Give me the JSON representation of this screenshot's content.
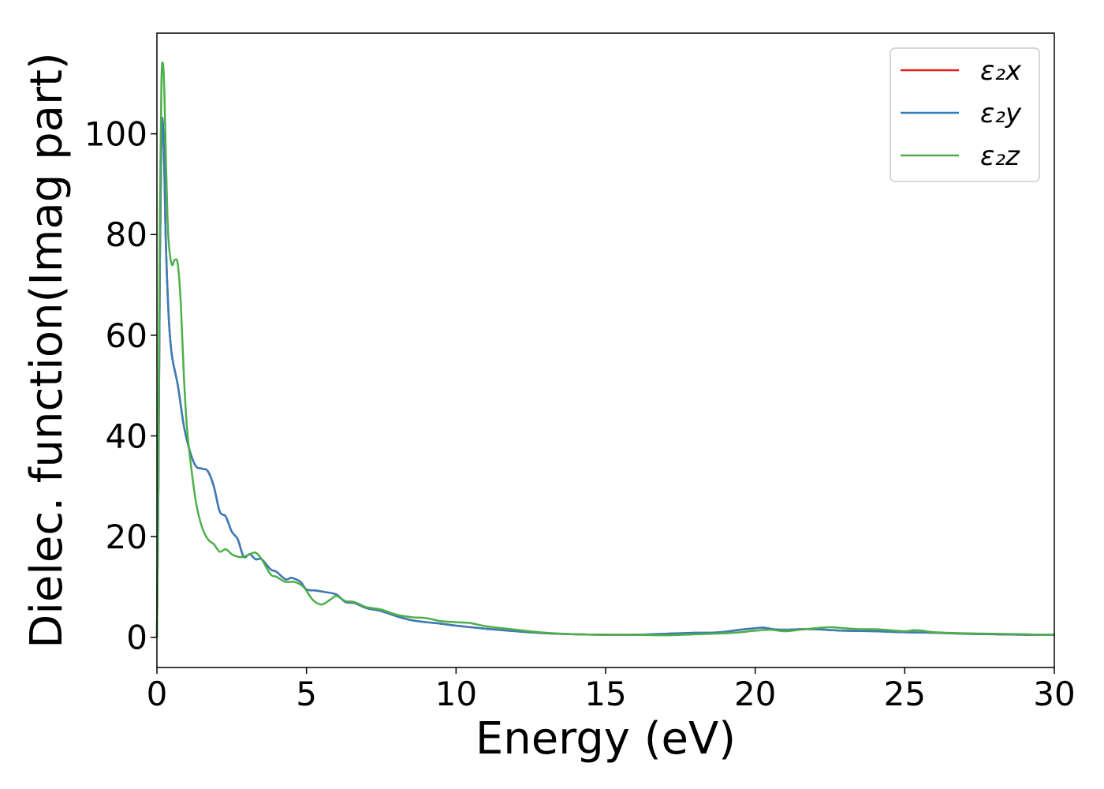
{
  "chart_data": {
    "type": "line",
    "title": "",
    "xlabel": "Energy (eV)",
    "ylabel": "Dielec. function(Imag part)",
    "xlim": [
      0,
      30
    ],
    "ylim": [
      -6,
      120
    ],
    "xticks": [
      0,
      5,
      10,
      15,
      20,
      25,
      30
    ],
    "yticks": [
      0,
      20,
      40,
      60,
      80,
      100
    ],
    "grid": false,
    "legend_position": "top-right",
    "series": [
      {
        "name": "ε₂x",
        "color": "#e41a1c",
        "x": [
          0,
          0.05,
          0.1,
          0.15,
          0.2,
          0.25,
          0.3,
          0.4,
          0.5,
          0.7,
          0.9,
          1.1,
          1.3,
          1.5,
          1.7,
          1.9,
          2.1,
          2.3,
          2.5,
          2.7,
          2.9,
          3.1,
          3.3,
          3.5,
          3.8,
          4.0,
          4.3,
          4.5,
          4.8,
          5.0,
          5.3,
          5.6,
          6.0,
          6.3,
          6.6,
          7.0,
          7.5,
          8.0,
          8.5,
          9.0,
          9.5,
          10.0,
          10.5,
          11.0,
          12.0,
          13.0,
          14.0,
          15.0,
          16.0,
          17.0,
          17.5,
          18.0,
          18.5,
          19.0,
          19.5,
          20.0,
          20.3,
          20.6,
          21.0,
          21.5,
          22.0,
          23.0,
          24.0,
          25.0,
          26.0,
          27.0,
          28.0,
          29.0,
          30.0
        ],
        "values": [
          0,
          30,
          75,
          100,
          102,
          92,
          78,
          63,
          56,
          50,
          42,
          37,
          34,
          33.5,
          33,
          30,
          25,
          24,
          21,
          19.5,
          16,
          16.5,
          15.5,
          15.5,
          13.5,
          13,
          11.5,
          11.8,
          11,
          9.5,
          9.3,
          9,
          8.5,
          7,
          6.8,
          5.8,
          5.2,
          4.2,
          3.4,
          3,
          2.7,
          2.3,
          2,
          1.7,
          1.2,
          0.8,
          0.6,
          0.5,
          0.5,
          0.7,
          0.8,
          0.9,
          0.9,
          1.1,
          1.5,
          1.8,
          1.9,
          1.6,
          1.5,
          1.6,
          1.6,
          1.3,
          1.2,
          1.0,
          0.9,
          0.7,
          0.6,
          0.5,
          0.5
        ]
      },
      {
        "name": "ε₂y",
        "color": "#377eb8",
        "x": [
          0,
          0.05,
          0.1,
          0.15,
          0.2,
          0.25,
          0.3,
          0.4,
          0.5,
          0.7,
          0.9,
          1.1,
          1.3,
          1.5,
          1.7,
          1.9,
          2.1,
          2.3,
          2.5,
          2.7,
          2.9,
          3.1,
          3.3,
          3.5,
          3.8,
          4.0,
          4.3,
          4.5,
          4.8,
          5.0,
          5.3,
          5.6,
          6.0,
          6.3,
          6.6,
          7.0,
          7.5,
          8.0,
          8.5,
          9.0,
          9.5,
          10.0,
          10.5,
          11.0,
          12.0,
          13.0,
          14.0,
          15.0,
          16.0,
          17.0,
          17.5,
          18.0,
          18.5,
          19.0,
          19.5,
          20.0,
          20.3,
          20.6,
          21.0,
          21.5,
          22.0,
          23.0,
          24.0,
          25.0,
          26.0,
          27.0,
          28.0,
          29.0,
          30.0
        ],
        "values": [
          0,
          30,
          75,
          100,
          102,
          92,
          78,
          63,
          56,
          50,
          42,
          37,
          34,
          33.5,
          33,
          30,
          25,
          24,
          21,
          19.5,
          16,
          16.5,
          15.5,
          15.5,
          13.5,
          13,
          11.5,
          11.8,
          11,
          9.5,
          9.3,
          9,
          8.5,
          7,
          6.8,
          5.8,
          5.2,
          4.2,
          3.4,
          3,
          2.7,
          2.3,
          2,
          1.7,
          1.2,
          0.8,
          0.6,
          0.5,
          0.5,
          0.7,
          0.8,
          0.9,
          0.9,
          1.1,
          1.5,
          1.8,
          1.9,
          1.6,
          1.5,
          1.6,
          1.6,
          1.3,
          1.2,
          1.0,
          0.9,
          0.7,
          0.6,
          0.5,
          0.5
        ]
      },
      {
        "name": "ε₂z",
        "color": "#4daf4a",
        "x": [
          0,
          0.05,
          0.1,
          0.15,
          0.2,
          0.25,
          0.3,
          0.35,
          0.4,
          0.5,
          0.6,
          0.7,
          0.8,
          0.9,
          1.0,
          1.1,
          1.3,
          1.5,
          1.7,
          1.9,
          2.1,
          2.3,
          2.5,
          2.7,
          2.9,
          3.1,
          3.3,
          3.5,
          3.8,
          4.0,
          4.3,
          4.6,
          4.9,
          5.2,
          5.5,
          5.8,
          6.0,
          6.3,
          6.6,
          7.0,
          7.5,
          8.0,
          8.5,
          9.0,
          9.5,
          10.0,
          10.5,
          11.0,
          12.0,
          13.0,
          14.0,
          15.0,
          16.0,
          17.0,
          18.0,
          19.0,
          19.5,
          20.0,
          20.5,
          21.0,
          21.5,
          22.0,
          22.5,
          23.0,
          23.5,
          24.0,
          24.5,
          25.0,
          25.3,
          25.6,
          26.0,
          27.0,
          28.0,
          29.0,
          29.5,
          30.0
        ],
        "values": [
          0,
          40,
          85,
          110,
          114,
          108,
          95,
          84,
          78,
          74,
          75,
          74,
          66,
          52,
          42,
          36,
          27,
          22,
          19.5,
          18.5,
          17,
          17.5,
          16.5,
          16,
          16,
          16.5,
          16.8,
          15.5,
          12.5,
          12,
          11,
          11,
          10,
          7.5,
          6.5,
          7.5,
          8.2,
          7.2,
          7,
          6,
          5.5,
          4.5,
          4,
          3.8,
          3.2,
          3,
          2.8,
          2.2,
          1.5,
          0.9,
          0.6,
          0.5,
          0.5,
          0.4,
          0.6,
          0.8,
          1.0,
          1.3,
          1.5,
          1.2,
          1.5,
          1.8,
          2.0,
          1.8,
          1.6,
          1.6,
          1.4,
          1.2,
          1.4,
          1.3,
          1.0,
          0.8,
          0.7,
          0.6,
          0.5,
          0.5
        ]
      }
    ]
  }
}
